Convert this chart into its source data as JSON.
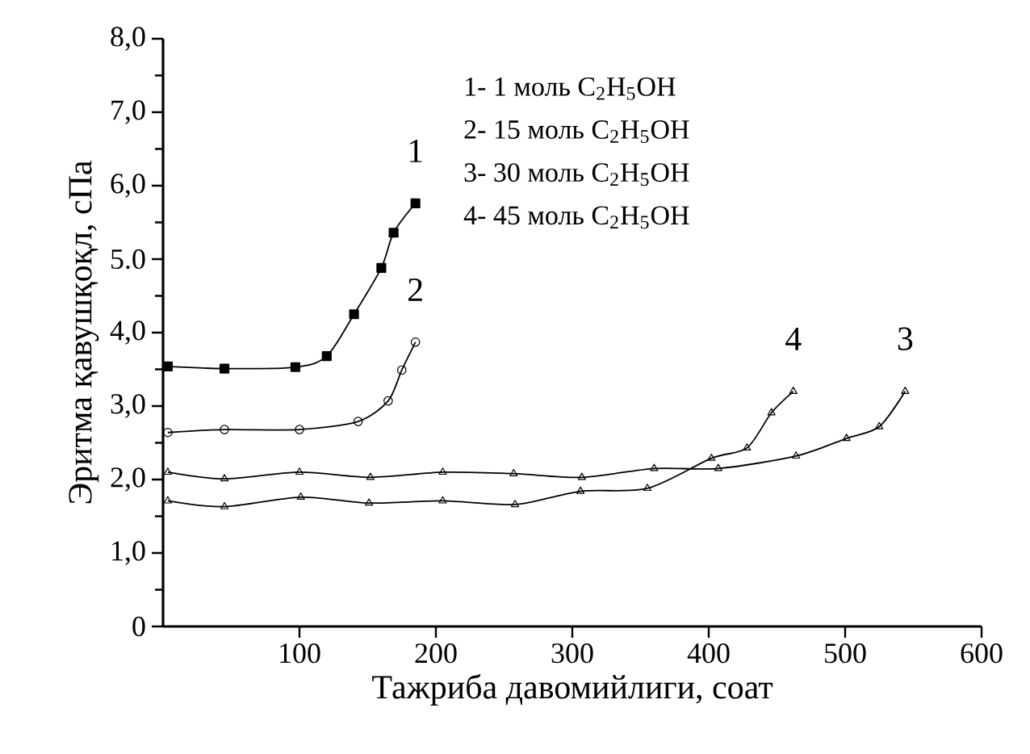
{
  "chart_data": {
    "type": "line",
    "xlabel": "Тажриба давомийлиги, соат",
    "ylabel": "Эритма қавушқоқл, сПа",
    "xlim": [
      0,
      600
    ],
    "ylim": [
      0,
      8
    ],
    "xticks": [
      100,
      200,
      300,
      400,
      500,
      600
    ],
    "yticks": [
      0,
      {
        "value": 1,
        "label": "1,0"
      },
      {
        "value": 2,
        "label": "2,0"
      },
      {
        "value": 3,
        "label": "3,0"
      },
      {
        "value": 4,
        "label": "4,0"
      },
      {
        "value": 5,
        "label": "5.0"
      },
      {
        "value": 6,
        "label": "6,0"
      },
      {
        "value": 7,
        "label": "7,0"
      },
      {
        "value": 8,
        "label": "8,0"
      }
    ],
    "series": [
      {
        "name": "1",
        "color": "#000000",
        "marker": "square",
        "x": [
          3.5,
          45,
          97,
          120,
          140,
          160,
          169,
          185
        ],
        "values": [
          3.54,
          3.51,
          3.53,
          3.68,
          4.25,
          4.88,
          5.36,
          5.76
        ]
      },
      {
        "name": "2",
        "color": "#000000",
        "marker": "circle",
        "x": [
          3.5,
          45,
          100,
          143,
          165,
          175,
          185
        ],
        "values": [
          2.64,
          2.68,
          2.68,
          2.79,
          3.07,
          3.49,
          3.87
        ]
      },
      {
        "name": "3",
        "color": "#000000",
        "marker": "triangle",
        "x": [
          3.5,
          45,
          100,
          152,
          205,
          257,
          307,
          360,
          407,
          464,
          501,
          525,
          544
        ],
        "values": [
          2.1,
          2.01,
          2.1,
          2.03,
          2.1,
          2.08,
          2.03,
          2.15,
          2.15,
          2.32,
          2.56,
          2.72,
          3.2
        ]
      },
      {
        "name": "4",
        "color": "#000000",
        "marker": "triangle",
        "x": [
          3.5,
          45,
          101,
          151,
          205,
          258,
          306,
          355,
          402,
          428,
          446,
          462
        ],
        "values": [
          1.71,
          1.63,
          1.76,
          1.68,
          1.71,
          1.66,
          1.84,
          1.88,
          2.29,
          2.43,
          2.91,
          3.2
        ]
      }
    ],
    "annotations": [
      "1-  1 моль  C$_{2}$H$_{5}$OH",
      "2- 15 моль C$_{2}$H$_{5}$OH",
      "3- 30 моль C$_{2}$H$_{5}$OH",
      "4- 45 моль C$_{2}$H$_{5}$OH"
    ]
  }
}
